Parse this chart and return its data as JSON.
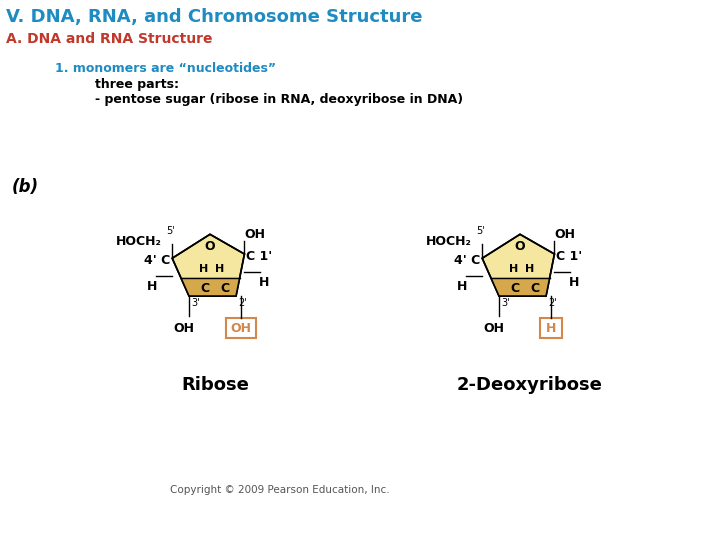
{
  "title": "V. DNA, RNA, and Chromosome Structure",
  "subtitle": "A. DNA and RNA Structure",
  "line1": "1. monomers are “nucleotides”",
  "line2": "three parts:",
  "line3": "- pentose sugar (ribose in RNA, deoxyribose in DNA)",
  "label_b": "(b)",
  "ribose_label": "Ribose",
  "deoxyribose_label": "2-Deoxyribose",
  "copyright": "Copyright © 2009 Pearson Education, Inc.",
  "title_color": "#1E8BC3",
  "subtitle_color": "#C0392B",
  "line1_color": "#1E8BC3",
  "pentagon_fill": "#F5E6A0",
  "pentagon_bottom_fill": "#D4A84B",
  "highlight_box_color": "#D4874A",
  "bg_color": "#FFFFFF"
}
